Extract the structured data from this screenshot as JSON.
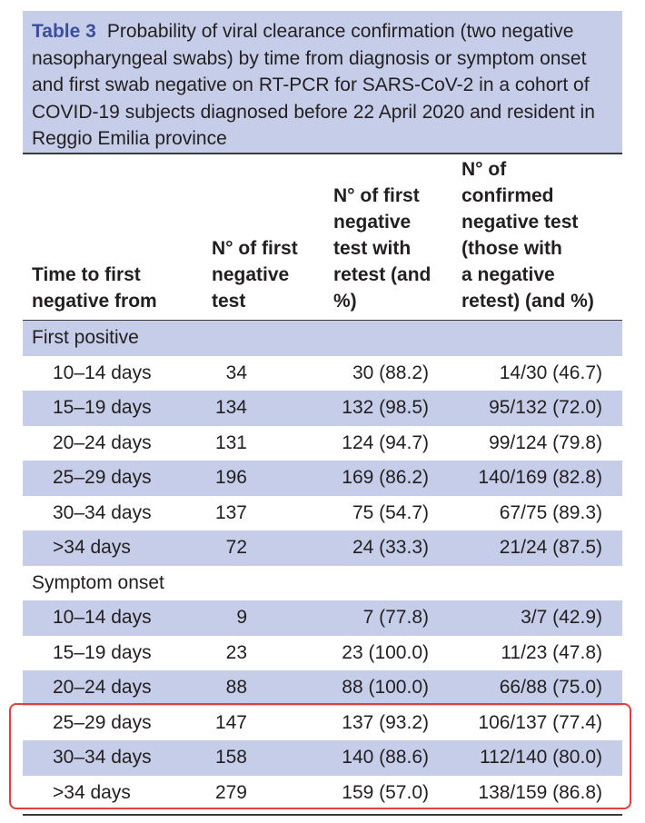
{
  "caption": {
    "label": "Table 3",
    "text": "Probability of viral clearance confirmation (two negative nasopharyngeal swabs) by time from diagnosis or symptom onset and first swab negative on RT-PCR for SARS-CoV-2 in a cohort of COVID-19 subjects diagnosed before 22 April 2020 and resident in Reggio Emilia province"
  },
  "table": {
    "headers": [
      [
        "Time to first",
        "negative from"
      ],
      [
        "N° of first",
        "negative",
        "test"
      ],
      [
        "N° of first",
        "negative",
        "test with",
        "retest (and",
        "%)"
      ],
      [
        "N° of",
        "confirmed",
        "negative test",
        "(those with",
        "a negative",
        "retest) (and %)"
      ]
    ],
    "sections": [
      {
        "title": "First positive",
        "rows": [
          [
            "10–14 days",
            "34",
            "30 (88.2)",
            "14/30 (46.7)"
          ],
          [
            "15–19 days",
            "134",
            "132 (98.5)",
            "95/132 (72.0)"
          ],
          [
            "20–24 days",
            "131",
            "124 (94.7)",
            "99/124 (79.8)"
          ],
          [
            "25–29 days",
            "196",
            "169 (86.2)",
            "140/169 (82.8)"
          ],
          [
            "30–34 days",
            "137",
            "75 (54.7)",
            "67/75 (89.3)"
          ],
          [
            ">34 days",
            "72",
            "24 (33.3)",
            "21/24 (87.5)"
          ]
        ]
      },
      {
        "title": "Symptom onset",
        "rows": [
          [
            "10–14 days",
            "9",
            "7 (77.8)",
            "3/7 (42.9)"
          ],
          [
            "15–19 days",
            "23",
            "23 (100.0)",
            "11/23 (47.8)"
          ],
          [
            "20–24 days",
            "88",
            "88 (100.0)",
            "66/88 (75.0)"
          ],
          [
            "25–29 days",
            "147",
            "137 (93.2)",
            "106/137 (77.4)"
          ],
          [
            "30–34 days",
            "158",
            "140 (88.6)",
            "112/140 (80.0)"
          ],
          [
            ">34 days",
            "279",
            "159 (57.0)",
            "138/159 (86.8)"
          ]
        ]
      }
    ]
  }
}
